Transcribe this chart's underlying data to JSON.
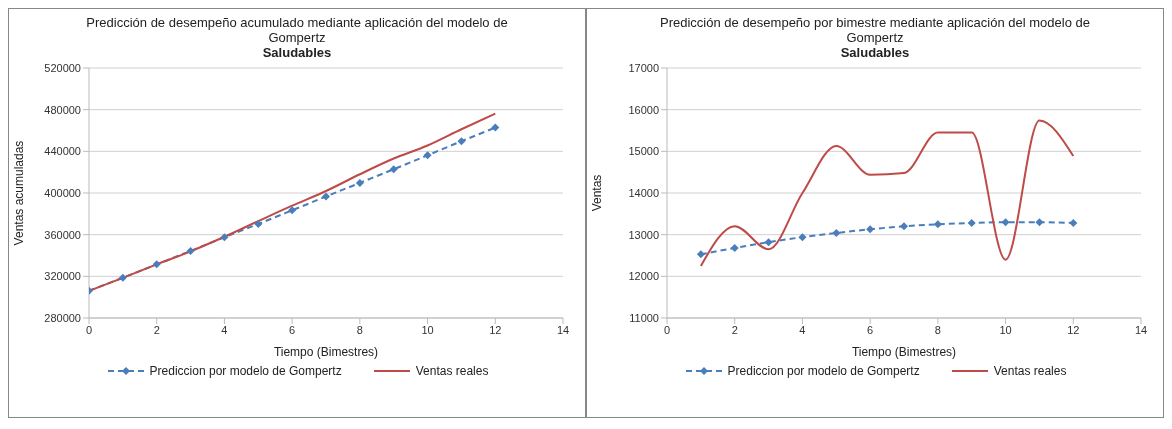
{
  "chart_data": [
    {
      "type": "line",
      "title": "Predicción de desempeño acumulado mediante aplicación del modelo de Gompertz",
      "subtitle": "Saludables",
      "xlabel": "Tiempo (Bimestres)",
      "ylabel": "Ventas acumuladas",
      "x": [
        0,
        1,
        2,
        3,
        4,
        5,
        6,
        7,
        8,
        9,
        10,
        11,
        12
      ],
      "xlim": [
        0,
        14
      ],
      "xticks": [
        0,
        2,
        4,
        6,
        8,
        10,
        12,
        14
      ],
      "ylim": [
        280000,
        520000
      ],
      "yticks": [
        280000,
        320000,
        360000,
        400000,
        440000,
        480000,
        520000
      ],
      "grid": "y",
      "legend": "bottom",
      "series": [
        {
          "name": "Prediccion por modelo de Gompertz",
          "color": "#4a7ebb",
          "marker": "diamond",
          "line_style": "dashed",
          "values": [
            306200,
            318700,
            331500,
            344400,
            357500,
            370300,
            383400,
            396600,
            409700,
            422800,
            436200,
            449700,
            462800
          ]
        },
        {
          "name": "Ventas reales",
          "color": "#be4b48",
          "marker": "none",
          "line_style": "solid",
          "values": [
            306000,
            318500,
            331500,
            344000,
            358000,
            373000,
            387800,
            401900,
            418000,
            433100,
            445600,
            461200,
            476200
          ]
        }
      ]
    },
    {
      "type": "line",
      "title": "Predicción de desempeño por bimestre mediante aplicación del modelo de Gompertz",
      "subtitle": "Saludables",
      "xlabel": "Tiempo (Bimestres)",
      "ylabel": "Ventas",
      "x": [
        1,
        2,
        3,
        4,
        5,
        6,
        7,
        8,
        9,
        10,
        11,
        12
      ],
      "xlim": [
        0,
        14
      ],
      "xticks": [
        0,
        2,
        4,
        6,
        8,
        10,
        12,
        14
      ],
      "ylim": [
        11000,
        17000
      ],
      "yticks": [
        11000,
        12000,
        13000,
        14000,
        15000,
        16000,
        17000
      ],
      "grid": "y",
      "legend": "bottom",
      "series": [
        {
          "name": "Prediccion por modelo de Gompertz",
          "color": "#4a7ebb",
          "marker": "diamond",
          "line_style": "dashed",
          "values": [
            12530,
            12680,
            12820,
            12940,
            13040,
            13130,
            13200,
            13250,
            13280,
            13300,
            13300,
            13280
          ]
        },
        {
          "name": "Ventas reales",
          "color": "#be4b48",
          "marker": "none",
          "line_style": "solid",
          "values": [
            12250,
            13200,
            12650,
            14000,
            15130,
            14440,
            14480,
            15450,
            15450,
            12400,
            15740,
            14890
          ]
        }
      ]
    }
  ]
}
